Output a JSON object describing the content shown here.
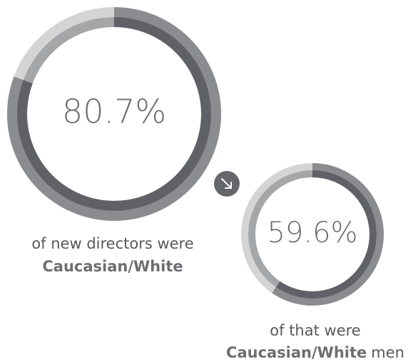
{
  "chart_data": [
    {
      "type": "donut",
      "values": [
        80.7
      ],
      "value_labels": [
        "80.7%"
      ],
      "text": "of new directors were",
      "emphasis": "Caucasian/White"
    },
    {
      "type": "donut",
      "values": [
        59.6
      ],
      "value_labels": [
        "59.6%"
      ],
      "text": "of that were",
      "emphasis": "Caucasian/White",
      "suffix": "men"
    }
  ]
}
